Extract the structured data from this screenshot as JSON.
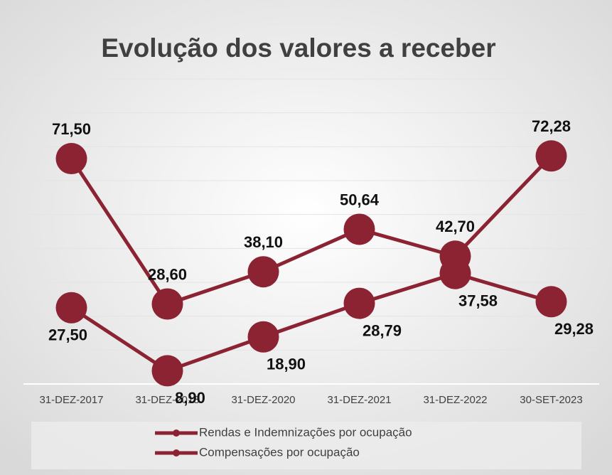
{
  "chart_data": {
    "type": "line",
    "title": "Evolução dos valores a receber",
    "categories": [
      "31-DEZ-2017",
      "31-DEZ-2018",
      "31-DEZ-2020",
      "31-DEZ-2021",
      "31-DEZ-2022",
      "30-SET-2023"
    ],
    "series": [
      {
        "name": "Rendas e Indemnizações por ocupação",
        "color": "#8b2332",
        "values": [
          71.5,
          28.6,
          38.1,
          50.64,
          42.7,
          72.28
        ],
        "value_labels": [
          "71,50",
          "28,60",
          "38,10",
          "50,64",
          "42,70",
          "72,28"
        ]
      },
      {
        "name": "Compensações por ocupação",
        "color": "#8b2332",
        "values": [
          27.5,
          8.9,
          18.9,
          28.79,
          37.58,
          29.28
        ],
        "value_labels": [
          "27,50",
          "8,90",
          "18,90",
          "28,79",
          "37,58",
          "29,28"
        ]
      }
    ],
    "ylim": [
      5,
      95
    ],
    "yticks": [
      15,
      25,
      35,
      45,
      55,
      65,
      75,
      85,
      95
    ],
    "grid": true,
    "legend": "bottom"
  }
}
